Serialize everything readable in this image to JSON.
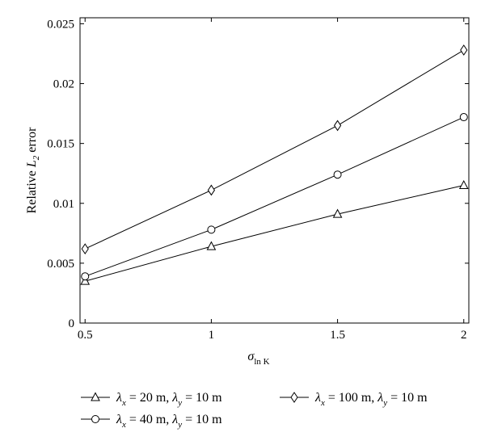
{
  "chart_data": {
    "type": "line",
    "x": [
      0.5,
      1,
      1.5,
      2
    ],
    "xlim": [
      0.48,
      2.02
    ],
    "ylim": [
      0,
      0.0255
    ],
    "xticks": [
      "0.5",
      "1",
      "1.5",
      "2"
    ],
    "yticks": [
      "0",
      "0.005",
      "0.01",
      "0.015",
      "0.02",
      "0.025"
    ],
    "xlabel": {
      "base": "σ",
      "sub": "ln K"
    },
    "ylabel": {
      "pre": "Relative ",
      "var": "L",
      "sub": "2",
      "post": " error"
    },
    "grid": false,
    "legend_position": "bottom",
    "series": [
      {
        "name": "λx = 20 m, λy = 10 m",
        "marker": "triangle",
        "values": [
          0.0035,
          0.0064,
          0.0091,
          0.0115
        ]
      },
      {
        "name": "λx = 40 m, λy = 10 m",
        "marker": "circle",
        "values": [
          0.0039,
          0.0078,
          0.0124,
          0.0172
        ]
      },
      {
        "name": "λx = 100 m, λy = 10 m",
        "marker": "diamond",
        "values": [
          0.0062,
          0.0111,
          0.0165,
          0.0228
        ]
      }
    ],
    "legend": [
      {
        "lx": "20",
        "ly": "10"
      },
      {
        "lx": "40",
        "ly": "10"
      },
      {
        "lx": "100",
        "ly": "10"
      }
    ]
  }
}
